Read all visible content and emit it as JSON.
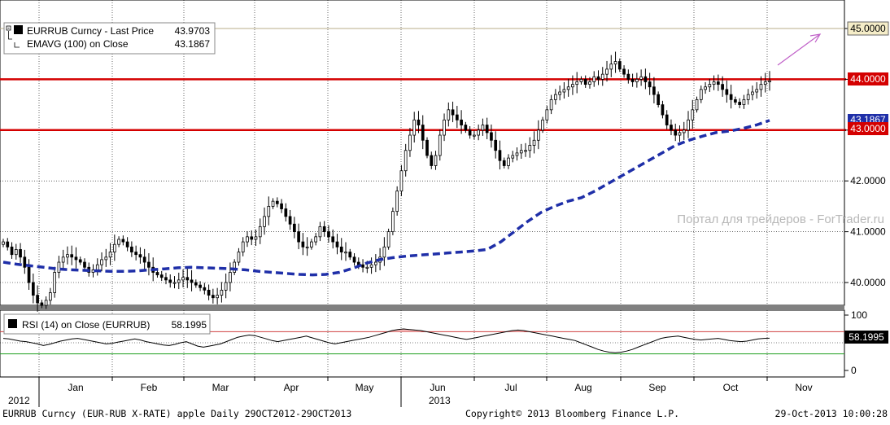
{
  "footer": {
    "left": "EURRUB Curncy (EUR-RUB X-RATE) apple  Daily 29OCT2012-29OCT2013",
    "center": "Copyright© 2013 Bloomberg Finance L.P.",
    "right": "29-Oct-2013 10:00:28"
  },
  "watermark": "Портал для трейдеров - ForTrader.ru",
  "colors": {
    "candle": "#000000",
    "ema": "#1f2fa8",
    "level": "#d40000",
    "arrow": "#c060c8",
    "rsi_hi": "#d04040",
    "rsi_lo": "#20a020"
  },
  "chart_data": [
    {
      "type": "candlestick",
      "ylim": [
        39.6,
        45.6
      ],
      "yticks": [
        "40.0000",
        "41.0000",
        "42.0000",
        "43.0000",
        "44.0000",
        "45.0000"
      ],
      "months": [
        "Jan",
        "Feb",
        "Mar",
        "Apr",
        "May",
        "Jun",
        "Jul",
        "Aug",
        "Sep",
        "Oct",
        "Nov"
      ],
      "year_labels": [
        "2012",
        "2013"
      ],
      "legend": [
        {
          "name": "EURRUB Curncy - Last Price",
          "value": "43.9703"
        },
        {
          "name": "EMAVG (100) on Close",
          "value": "43.1867"
        }
      ],
      "price_tags": {
        "top": "45.0000",
        "ema": "43.1867",
        "upper": "44.0000",
        "lower": "43.0000"
      },
      "levels": [
        44.0,
        43.0
      ],
      "series": [
        {
          "name": "EURRUB Curncy - Last Price",
          "close": [
            40.8,
            40.7,
            40.55,
            40.65,
            40.5,
            40.3,
            40.0,
            39.75,
            39.6,
            39.55,
            39.65,
            39.8,
            40.2,
            40.4,
            40.5,
            40.55,
            40.5,
            40.45,
            40.4,
            40.3,
            40.2,
            40.25,
            40.35,
            40.45,
            40.5,
            40.6,
            40.75,
            40.85,
            40.8,
            40.7,
            40.6,
            40.55,
            40.5,
            40.4,
            40.3,
            40.2,
            40.15,
            40.1,
            40.05,
            40.0,
            40.0,
            40.05,
            40.1,
            40.05,
            40.0,
            39.95,
            39.9,
            39.85,
            39.75,
            39.7,
            39.75,
            39.85,
            40.0,
            40.2,
            40.4,
            40.6,
            40.8,
            40.9,
            40.85,
            40.9,
            41.1,
            41.3,
            41.5,
            41.6,
            41.55,
            41.45,
            41.3,
            41.15,
            41.0,
            40.8,
            40.7,
            40.7,
            40.8,
            40.9,
            41.1,
            41.0,
            40.9,
            40.8,
            40.7,
            40.6,
            40.6,
            40.5,
            40.4,
            40.35,
            40.3,
            40.3,
            40.35,
            40.4,
            40.5,
            40.7,
            41.0,
            41.4,
            41.8,
            42.2,
            42.6,
            42.9,
            43.2,
            43.1,
            42.8,
            42.5,
            42.3,
            42.5,
            42.9,
            43.2,
            43.4,
            43.3,
            43.2,
            43.1,
            43.0,
            42.9,
            42.9,
            43.0,
            43.1,
            42.95,
            42.8,
            42.6,
            42.4,
            42.3,
            42.45,
            42.5,
            42.55,
            42.6,
            42.6,
            42.7,
            42.8,
            43.0,
            43.2,
            43.4,
            43.6,
            43.7,
            43.75,
            43.8,
            43.85,
            43.9,
            43.95,
            44.0,
            43.9,
            43.95,
            44.05,
            44.0,
            44.1,
            44.2,
            44.3,
            44.35,
            44.2,
            44.1,
            44.0,
            43.95,
            44.0,
            44.05,
            43.95,
            43.85,
            43.7,
            43.5,
            43.3,
            43.1,
            43.0,
            42.9,
            42.95,
            43.0,
            43.2,
            43.4,
            43.6,
            43.8,
            43.85,
            43.9,
            43.95,
            43.9,
            43.8,
            43.7,
            43.6,
            43.55,
            43.5,
            43.6,
            43.7,
            43.75,
            43.8,
            43.9,
            43.95,
            43.97
          ]
        },
        {
          "name": "EMAVG (100) on Close",
          "values": [
            40.4,
            40.36,
            40.33,
            40.3,
            40.27,
            40.25,
            40.24,
            40.23,
            40.22,
            40.22,
            40.23,
            40.25,
            40.27,
            40.29,
            40.3,
            40.29,
            40.28,
            40.27,
            40.25,
            40.22,
            40.2,
            40.18,
            40.16,
            40.15,
            40.16,
            40.2,
            40.28,
            40.38,
            40.45,
            40.49,
            40.52,
            40.54,
            40.56,
            40.58,
            40.6,
            40.62,
            40.65,
            40.8,
            41.0,
            41.2,
            41.38,
            41.5,
            41.6,
            41.67,
            41.8,
            41.95,
            42.1,
            42.25,
            42.4,
            42.55,
            42.7,
            42.8,
            42.88,
            42.95,
            42.98,
            43.03,
            43.1,
            43.19
          ]
        }
      ]
    },
    {
      "type": "line",
      "ylim": [
        0,
        100
      ],
      "yticks": [
        "0",
        "50",
        "100"
      ],
      "legend": [
        {
          "name": "RSI (14) on Close (EURRUB)",
          "value": "58.1995"
        }
      ],
      "thresholds": [
        70,
        30
      ],
      "series": [
        {
          "name": "RSI (14) on Close (EURRUB)",
          "values": [
            58,
            57,
            55,
            53,
            52,
            50,
            48,
            45,
            47,
            50,
            53,
            55,
            57,
            58,
            56,
            54,
            52,
            50,
            48,
            49,
            51,
            53,
            55,
            57,
            55,
            52,
            50,
            48,
            46,
            45,
            47,
            50,
            52,
            48,
            44,
            42,
            44,
            46,
            48,
            52,
            56,
            60,
            62,
            64,
            63,
            60,
            57,
            54,
            52,
            54,
            56,
            58,
            60,
            62,
            59,
            56,
            53,
            50,
            48,
            50,
            52,
            54,
            56,
            58,
            60,
            63,
            66,
            69,
            72,
            74,
            75,
            74,
            73,
            72,
            70,
            68,
            66,
            64,
            62,
            60,
            58,
            56,
            58,
            60,
            62,
            64,
            66,
            68,
            70,
            72,
            73,
            72,
            70,
            68,
            66,
            64,
            62,
            60,
            58,
            56,
            54,
            50,
            46,
            42,
            38,
            35,
            33,
            32,
            33,
            35,
            38,
            42,
            46,
            50,
            54,
            58,
            60,
            61,
            62,
            60,
            58,
            56,
            55,
            56,
            57,
            58,
            56,
            54,
            53,
            52,
            53,
            55,
            57,
            58,
            58.2
          ]
        }
      ]
    }
  ]
}
